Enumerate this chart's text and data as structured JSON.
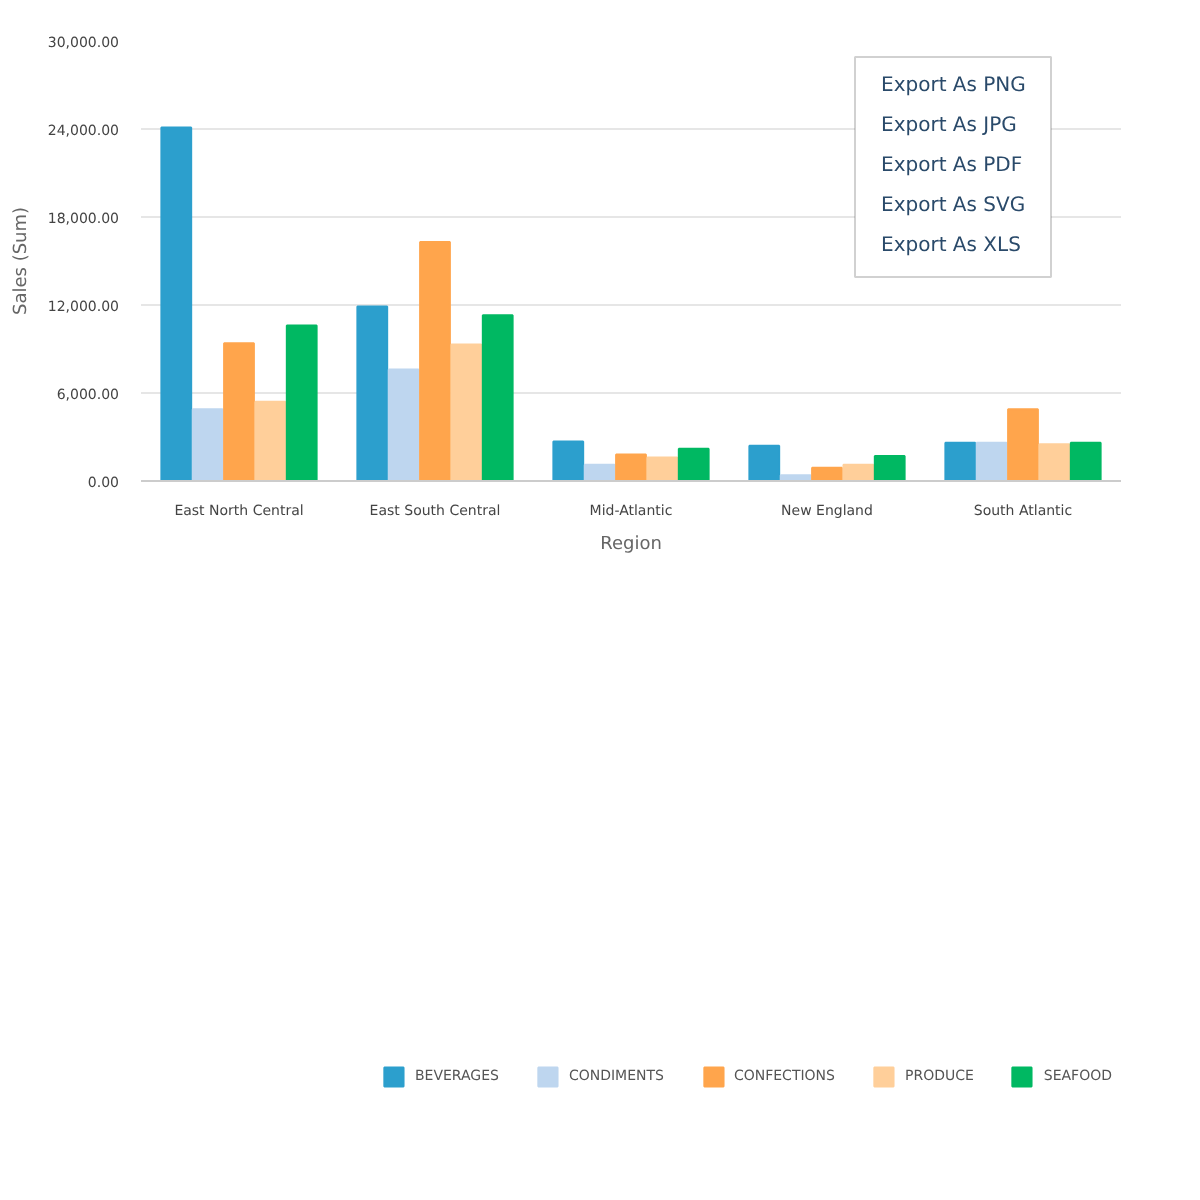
{
  "chart_data": {
    "type": "bar",
    "xlabel": "Region",
    "ylabel": "Sales (Sum)",
    "categories": [
      "East North Central",
      "East South Central",
      "Mid-Atlantic",
      "New England",
      "South Atlantic"
    ],
    "series": [
      {
        "name": "BEVERAGES",
        "color": "#2c9fcd",
        "values": [
          24100,
          11900,
          2700,
          2400,
          2600
        ]
      },
      {
        "name": "CONDIMENTS",
        "color": "#bed6ef",
        "values": [
          4900,
          7600,
          1100,
          400,
          2600
        ]
      },
      {
        "name": "CONFECTIONS",
        "color": "#ffa54c",
        "values": [
          9400,
          16300,
          1800,
          900,
          4900
        ]
      },
      {
        "name": "PRODUCE",
        "color": "#ffcf9a",
        "values": [
          5400,
          9300,
          1600,
          1100,
          2500
        ]
      },
      {
        "name": "SEAFOOD",
        "color": "#00b862",
        "values": [
          10600,
          11300,
          2200,
          1700,
          2600
        ]
      }
    ],
    "ylim": [
      0,
      30000
    ],
    "yticks": [
      {
        "value": 0,
        "label": "0.00"
      },
      {
        "value": 6000,
        "label": "6,000.00"
      },
      {
        "value": 12000,
        "label": "12,000.00"
      },
      {
        "value": 18000,
        "label": "18,000.00"
      },
      {
        "value": 24000,
        "label": "24,000.00"
      },
      {
        "value": 30000,
        "label": "30,000.00"
      }
    ],
    "grid": "y",
    "legend": "bottom",
    "annotations": [
      "Export As PNG",
      "Export As JPG",
      "Export As PDF",
      "Export As SVG",
      "Export As XLS"
    ]
  }
}
